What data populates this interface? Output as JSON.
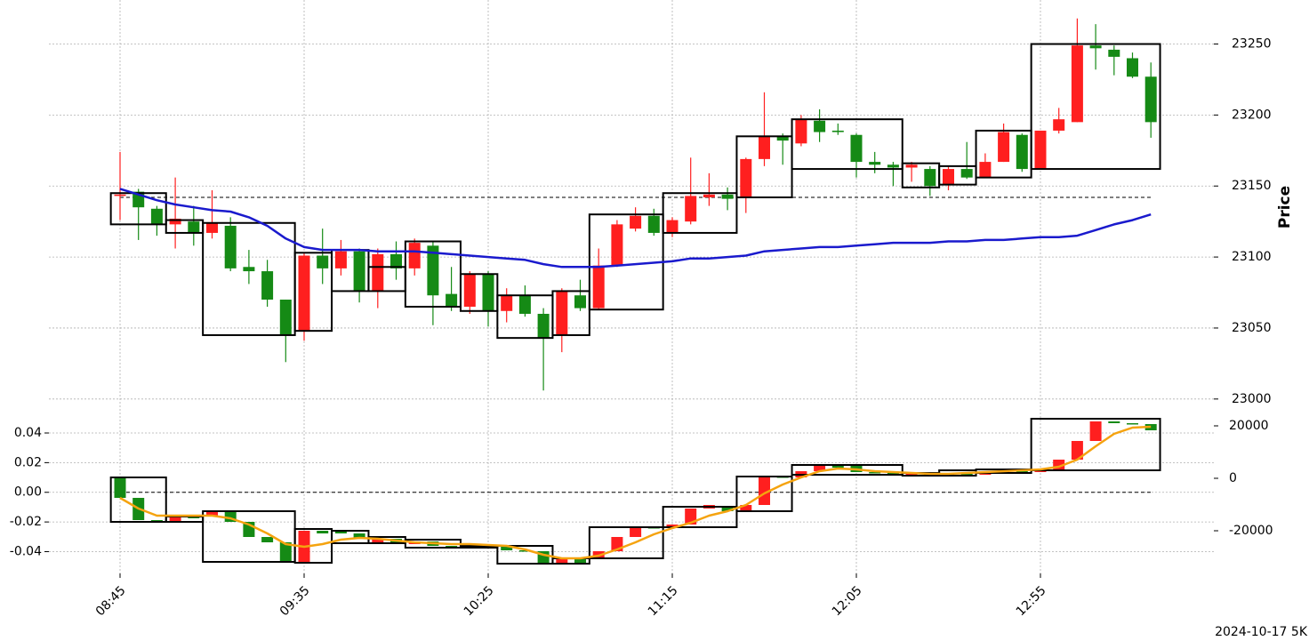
{
  "caption": "2024-10-17 5K",
  "chart_data": [
    {
      "type": "candlestick",
      "ylabel": "Price",
      "grid": true,
      "up_color": "#ff1f1f",
      "down_color": "#158a15",
      "categories": [
        "08:45",
        null,
        null,
        null,
        null,
        null,
        null,
        null,
        null,
        null,
        "09:35",
        null,
        null,
        null,
        null,
        null,
        null,
        null,
        null,
        null,
        "10:25",
        null,
        null,
        null,
        null,
        null,
        null,
        null,
        null,
        null,
        "11:15",
        null,
        null,
        null,
        null,
        null,
        null,
        null,
        null,
        null,
        "12:05",
        null,
        null,
        null,
        null,
        null,
        null,
        null,
        null,
        null,
        "12:55",
        null,
        null,
        null,
        null,
        null,
        null
      ],
      "open": [
        23143,
        23146,
        23134,
        23123,
        23125,
        23117,
        23122,
        23093,
        23090,
        23070,
        23048,
        23101,
        23092,
        23104,
        23076,
        23102,
        23092,
        23108,
        23074,
        23065,
        23088,
        23062,
        23073,
        23060,
        23045,
        23073,
        23064,
        23094,
        23120,
        23129,
        23117,
        23125,
        23142,
        23144,
        23142,
        23169,
        23185,
        23180,
        23196,
        23189,
        23186,
        23167,
        23165,
        23163,
        23162,
        23151,
        23162,
        23156,
        23167,
        23186,
        23162,
        23189,
        23195,
        23249,
        23246,
        23240,
        23227
      ],
      "high": [
        23174,
        23148,
        23136,
        23156,
        23136,
        23147,
        23128,
        23105,
        23098,
        23070,
        23103,
        23120,
        23112,
        23106,
        23106,
        23111,
        23113,
        23111,
        23093,
        23090,
        23090,
        23078,
        23080,
        23064,
        23078,
        23084,
        23106,
        23126,
        23135,
        23134,
        23128,
        23170,
        23159,
        23149,
        23170,
        23216,
        23187,
        23200,
        23204,
        23194,
        23187,
        23174,
        23167,
        23167,
        23164,
        23164,
        23181,
        23173,
        23194,
        23187,
        23189,
        23205,
        23268,
        23264,
        23249,
        23244,
        23237
      ],
      "low": [
        23126,
        23112,
        23115,
        23106,
        23108,
        23113,
        23090,
        23081,
        23065,
        23026,
        23041,
        23081,
        23087,
        23068,
        23064,
        23084,
        23087,
        23052,
        23062,
        23060,
        23051,
        23054,
        23058,
        23006,
        23033,
        23062,
        23063,
        23093,
        23118,
        23115,
        23114,
        23123,
        23136,
        23133,
        23131,
        23164,
        23165,
        23178,
        23181,
        23186,
        23156,
        23159,
        23150,
        23153,
        23143,
        23147,
        23155,
        23156,
        23167,
        23160,
        23162,
        23187,
        23195,
        23232,
        23228,
        23226,
        23184
      ],
      "close": [
        23144,
        23135,
        23123,
        23127,
        23117,
        23124,
        23092,
        23090,
        23070,
        23045,
        23101,
        23092,
        23104,
        23076,
        23102,
        23092,
        23110,
        23073,
        23065,
        23088,
        23062,
        23073,
        23060,
        23043,
        23076,
        23064,
        23094,
        23123,
        23129,
        23117,
        23126,
        23143,
        23144,
        23141,
        23169,
        23185,
        23182,
        23197,
        23188,
        23188,
        23167,
        23165,
        23163,
        23165,
        23150,
        23162,
        23156,
        23167,
        23188,
        23162,
        23189,
        23197,
        23249,
        23247,
        23241,
        23227,
        23195
      ],
      "series": [
        {
          "color": "#1a1acd",
          "values": [
            23148,
            23144,
            23140,
            23137,
            23135,
            23133,
            23132,
            23128,
            23122,
            23113,
            23107,
            23105,
            23105,
            23105,
            23104,
            23104,
            23104,
            23103,
            23102,
            23101,
            23100,
            23099,
            23098,
            23095,
            23093,
            23093,
            23093,
            23094,
            23095,
            23096,
            23097,
            23099,
            23099,
            23100,
            23101,
            23104,
            23105,
            23106,
            23107,
            23107,
            23108,
            23109,
            23110,
            23110,
            23110,
            23111,
            23111,
            23112,
            23112,
            23113,
            23114,
            23114,
            23115,
            23119,
            23123,
            23126,
            23130
          ]
        }
      ],
      "hline": 23142,
      "boxes": [
        {
          "start": 0,
          "end": 2,
          "low": 23123,
          "high": 23145
        },
        {
          "start": 3,
          "end": 4,
          "low": 23117,
          "high": 23126
        },
        {
          "start": 5,
          "end": 9,
          "low": 23045,
          "high": 23124
        },
        {
          "start": 10,
          "end": 11,
          "low": 23048,
          "high": 23103
        },
        {
          "start": 12,
          "end": 13,
          "low": 23076,
          "high": 23105
        },
        {
          "start": 14,
          "end": 15,
          "low": 23076,
          "high": 23093
        },
        {
          "start": 16,
          "end": 18,
          "low": 23065,
          "high": 23111
        },
        {
          "start": 19,
          "end": 20,
          "low": 23062,
          "high": 23088
        },
        {
          "start": 21,
          "end": 23,
          "low": 23043,
          "high": 23073
        },
        {
          "start": 24,
          "end": 25,
          "low": 23045,
          "high": 23076
        },
        {
          "start": 26,
          "end": 29,
          "low": 23063,
          "high": 23130
        },
        {
          "start": 30,
          "end": 33,
          "low": 23117,
          "high": 23145
        },
        {
          "start": 34,
          "end": 36,
          "low": 23142,
          "high": 23185
        },
        {
          "start": 37,
          "end": 42,
          "low": 23162,
          "high": 23197
        },
        {
          "start": 43,
          "end": 44,
          "low": 23149,
          "high": 23166
        },
        {
          "start": 45,
          "end": 46,
          "low": 23151,
          "high": 23164
        },
        {
          "start": 47,
          "end": 49,
          "low": 23156,
          "high": 23189
        },
        {
          "start": 50,
          "end": 56,
          "low": 23162,
          "high": 23250
        }
      ],
      "ylim": [
        22993,
        23281
      ],
      "yticks": [
        23000,
        23050,
        23100,
        23150,
        23200,
        23250
      ]
    },
    {
      "type": "candlestick",
      "grid": true,
      "up_color": "#ff1f1f",
      "down_color": "#158a15",
      "candle_axis": "y2",
      "open": [
        0,
        -7458,
        -15932,
        -16610,
        -14576,
        -14576,
        -12542,
        -16610,
        -22373,
        -24407,
        -32203,
        -20000,
        -19661,
        -21017,
        -24746,
        -23051,
        -25085,
        -24068,
        -25763,
        -26102,
        -25763,
        -26102,
        -27458,
        -27797,
        -32203,
        -30508,
        -30508,
        -27797,
        -22373,
        -18644,
        -18983,
        -17627,
        -11525,
        -10847,
        -12542,
        -10169,
        678,
        339,
        2712,
        4746,
        4746,
        2373,
        2034,
        1356,
        2034,
        1017,
        1695,
        1356,
        2034,
        2712,
        2373,
        3390,
        7119,
        14237,
        21695,
        21017,
        20678
      ],
      "close": [
        -7458,
        -15932,
        -16610,
        -14576,
        -15254,
        -12542,
        -16610,
        -22373,
        -24407,
        -32203,
        -20000,
        -21017,
        -21017,
        -23051,
        -23051,
        -24407,
        -24068,
        -25763,
        -26441,
        -25763,
        -26780,
        -27458,
        -27797,
        -32203,
        -30508,
        -32542,
        -27797,
        -22373,
        -18644,
        -18983,
        -17627,
        -11525,
        -10169,
        -12542,
        -10169,
        678,
        339,
        2712,
        4746,
        4068,
        2373,
        2034,
        1356,
        2034,
        1017,
        1695,
        1356,
        2034,
        2712,
        2373,
        3390,
        7119,
        14237,
        21695,
        21017,
        20678,
        18305
      ],
      "series": [
        {
          "color": "#f5a30f",
          "axis": "y2",
          "values": [
            -7458,
            -11525,
            -14237,
            -14237,
            -14237,
            -14237,
            -15254,
            -17627,
            -21017,
            -25085,
            -26102,
            -25085,
            -23390,
            -22712,
            -23051,
            -23729,
            -24407,
            -24746,
            -25085,
            -25085,
            -25424,
            -25763,
            -27119,
            -29153,
            -30508,
            -30508,
            -29492,
            -27119,
            -24407,
            -21356,
            -18983,
            -16949,
            -14237,
            -12542,
            -10169,
            -5763,
            -2373,
            339,
            2712,
            3729,
            3390,
            2712,
            2373,
            2034,
            1695,
            1695,
            2034,
            2373,
            2712,
            3051,
            3390,
            4407,
            7119,
            12203,
            16949,
            19322,
            19661
          ]
        }
      ],
      "hline": 0,
      "boxes": [
        {
          "start": 0,
          "end": 2,
          "low": -16610,
          "high": 339
        },
        {
          "start": 3,
          "end": 4,
          "low": -16610,
          "high": -14576
        },
        {
          "start": 5,
          "end": 9,
          "low": -31864,
          "high": -12542
        },
        {
          "start": 10,
          "end": 11,
          "low": -32203,
          "high": -19322
        },
        {
          "start": 12,
          "end": 13,
          "low": -24746,
          "high": -20000
        },
        {
          "start": 14,
          "end": 15,
          "low": -24746,
          "high": -22373
        },
        {
          "start": 16,
          "end": 18,
          "low": -26441,
          "high": -23390
        },
        {
          "start": 19,
          "end": 20,
          "low": -26441,
          "high": -25763
        },
        {
          "start": 21,
          "end": 23,
          "low": -32542,
          "high": -25763
        },
        {
          "start": 24,
          "end": 25,
          "low": -32542,
          "high": -30508
        },
        {
          "start": 26,
          "end": 29,
          "low": -30508,
          "high": -18644
        },
        {
          "start": 30,
          "end": 33,
          "low": -18644,
          "high": -10847
        },
        {
          "start": 34,
          "end": 36,
          "low": -12542,
          "high": 678
        },
        {
          "start": 37,
          "end": 42,
          "low": 1356,
          "high": 5085
        },
        {
          "start": 43,
          "end": 44,
          "low": 1017,
          "high": 2034
        },
        {
          "start": 45,
          "end": 46,
          "low": 1017,
          "high": 3051
        },
        {
          "start": 47,
          "end": 49,
          "low": 2034,
          "high": 3390
        },
        {
          "start": 50,
          "end": 56,
          "low": 3051,
          "high": 22712
        }
      ],
      "ylim": [
        -0.0547,
        0.0502
      ],
      "yticks": [
        -0.04,
        -0.02,
        {
          "value": 0,
          "label": "0.00"
        },
        0.02,
        0.04
      ],
      "y2lim": [
        -36271,
        23051
      ],
      "y2ticks": [
        -20000,
        0,
        20000
      ]
    }
  ]
}
